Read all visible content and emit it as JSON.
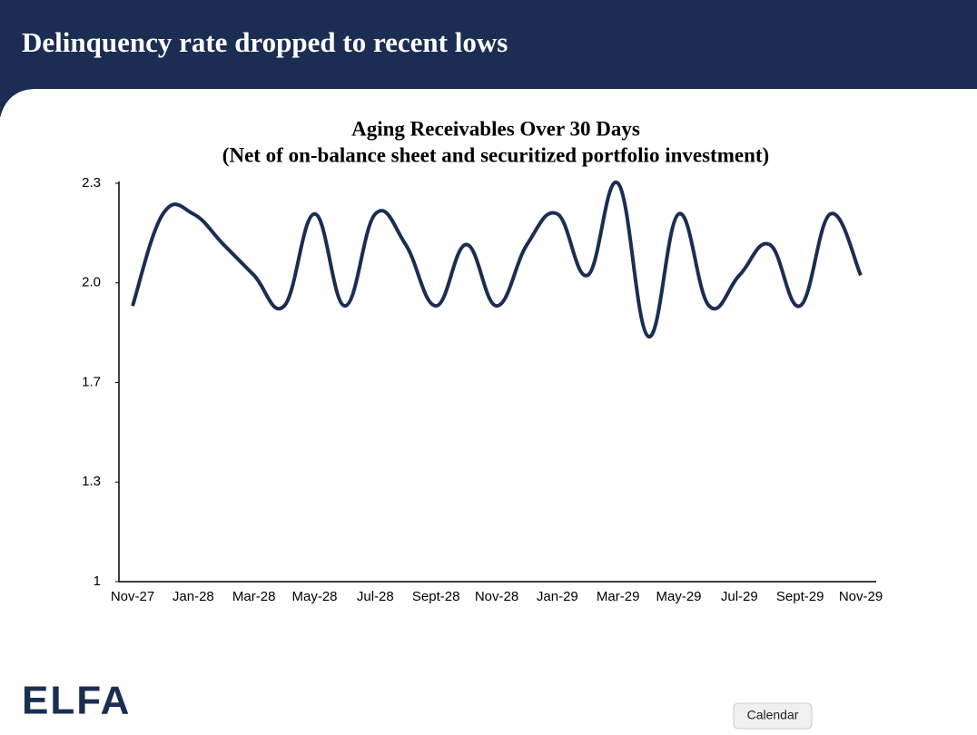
{
  "header": {
    "title": "Delinquency rate dropped to recent lows"
  },
  "logo": "ELFA",
  "tooltip": "Calendar",
  "chart_data": {
    "type": "line",
    "title": "Aging Receivables Over 30 Days",
    "subtitle": "(Net of on-balance sheet and securitized portfolio investment)",
    "categories": [
      "Nov-27",
      null,
      "Jan-28",
      null,
      "Mar-28",
      null,
      "May-28",
      null,
      "Jul-28",
      null,
      "Sept-28",
      null,
      "Nov-28",
      null,
      "Jan-29",
      null,
      "Mar-29",
      null,
      "May-29",
      null,
      "Jul-29",
      null,
      "Sept-29",
      null,
      "Nov-29"
    ],
    "series": [
      {
        "name": "Delinquency rate",
        "color": "#1b2d52",
        "values": [
          1.9,
          2.2,
          2.2,
          2.1,
          2.0,
          1.9,
          2.2,
          1.9,
          2.2,
          2.1,
          1.9,
          2.1,
          1.9,
          2.1,
          2.2,
          2.0,
          2.3,
          1.8,
          2.2,
          1.9,
          2.0,
          2.1,
          1.9,
          2.2,
          2.0
        ]
      }
    ],
    "ylim": [
      1.0,
      2.3
    ],
    "yticks": [
      1.0,
      {
        "value": 1.325,
        "label": "1.3"
      },
      {
        "value": 1.65,
        "label": "1.7"
      },
      {
        "value": 1.975,
        "label": "2.0"
      },
      2.3
    ],
    "grid": false
  }
}
